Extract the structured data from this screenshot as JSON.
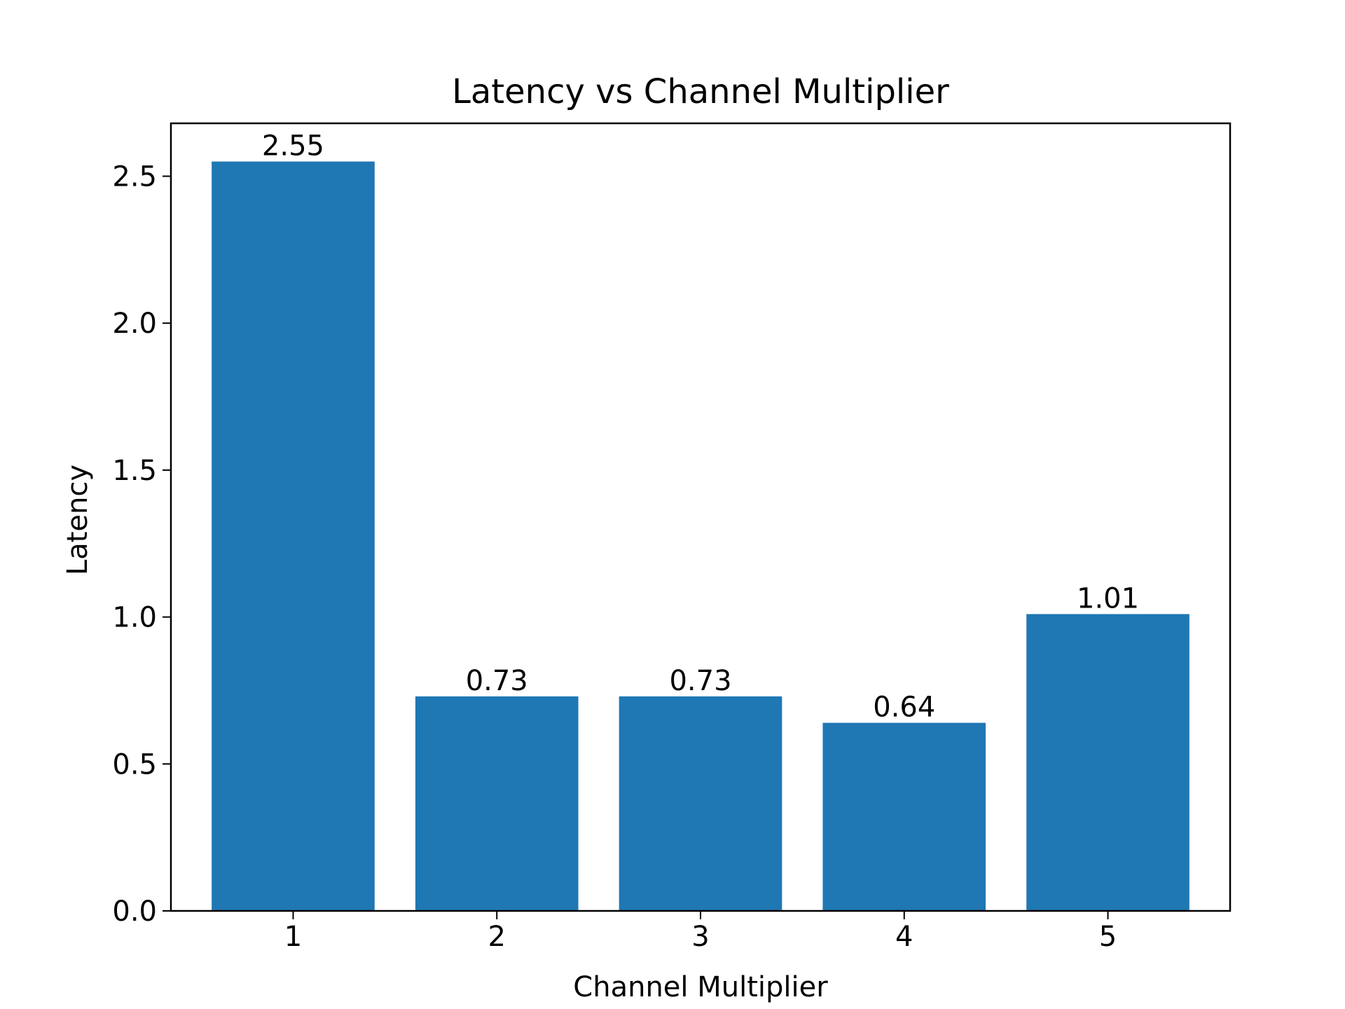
{
  "chart_data": {
    "type": "bar",
    "title": "Latency vs Channel Multiplier",
    "xlabel": "Channel Multiplier",
    "ylabel": "Latency",
    "categories": [
      "1",
      "2",
      "3",
      "4",
      "5"
    ],
    "values": [
      2.55,
      0.73,
      0.73,
      0.64,
      1.01
    ],
    "value_labels": [
      "2.55",
      "0.73",
      "0.73",
      "0.64",
      "1.01"
    ],
    "ylim": [
      0,
      2.68
    ],
    "yticks": [
      0.0,
      0.5,
      1.0,
      1.5,
      2.0,
      2.5
    ],
    "ytick_labels": [
      "0.0",
      "0.5",
      "1.0",
      "1.5",
      "2.0",
      "2.5"
    ],
    "grid": false,
    "colors": {
      "bar": "#1f77b4",
      "axis": "#000000"
    }
  }
}
